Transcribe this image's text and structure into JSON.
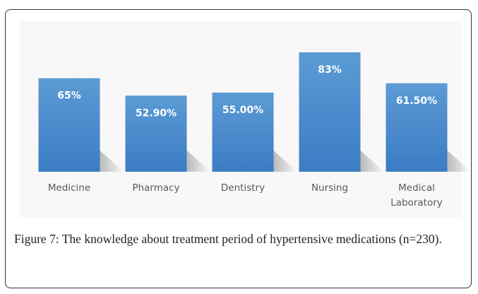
{
  "chart_data": {
    "type": "bar",
    "categories": [
      "Medicine",
      "Pharmacy",
      "Dentistry",
      "Nursing",
      "Medical Laboratory"
    ],
    "values": [
      65,
      52.9,
      55,
      83,
      61.5
    ],
    "value_labels": [
      "65%",
      "52.90%",
      "55.00%",
      "83%",
      "61.50%"
    ],
    "color": "#5b9bd5",
    "caption": "Figure 7: The knowledge about treatment period of hypertensive medications (n=230)."
  }
}
